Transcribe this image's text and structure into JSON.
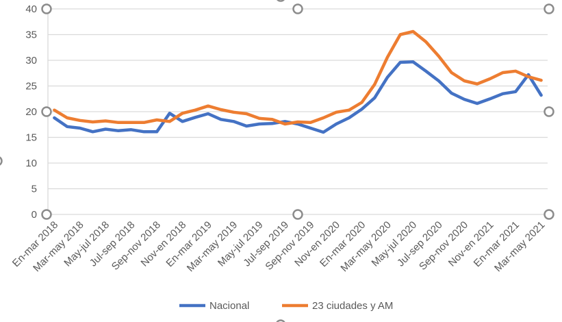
{
  "chart_data": {
    "type": "line",
    "title": "",
    "xlabel": "",
    "ylabel": "",
    "ylim": [
      0,
      40
    ],
    "yticks": [
      "0",
      "5",
      "10",
      "15",
      "20",
      "25",
      "30",
      "35",
      "40"
    ],
    "grid": true,
    "legend_position": "bottom",
    "x_tick_labels": [
      "En-mar 2018",
      "Mar-may 2018",
      "May-jul 2018",
      "Jul-sep 2018",
      "Sep-nov 2018",
      "Nov-en 2018",
      "En-mar 2019",
      "Mar-may 2019",
      "May-jul 2019",
      "Jul-sep 2019",
      "Sep-nov 2019",
      "Nov-en 2020",
      "En-mar 2020",
      "Mar-may 2020",
      "May-jul 2020",
      "Jul-sep 2020",
      "Sep-nov 2020",
      "Nov-en 2021",
      "En-mar 2021",
      "Mar-may 2021"
    ],
    "x_tick_interval": 2,
    "series": [
      {
        "name": "Nacional",
        "color": "#4472C4",
        "values": [
          18.8,
          17.1,
          16.8,
          16.1,
          16.6,
          16.3,
          16.5,
          16.1,
          16.1,
          19.7,
          18.1,
          18.9,
          19.6,
          18.5,
          18.1,
          17.2,
          17.6,
          17.7,
          18.1,
          17.6,
          16.8,
          16.0,
          17.6,
          18.8,
          20.5,
          22.7,
          26.7,
          29.6,
          29.7,
          27.9,
          26.0,
          23.6,
          22.4,
          21.6,
          22.5,
          23.5,
          23.9,
          27.2,
          23.2
        ]
      },
      {
        "name": "23 ciudades y AM",
        "color": "#ED7D31",
        "values": [
          20.3,
          18.8,
          18.3,
          18.0,
          18.2,
          17.9,
          17.9,
          17.9,
          18.4,
          18.1,
          19.7,
          20.3,
          21.1,
          20.4,
          19.9,
          19.6,
          18.7,
          18.5,
          17.6,
          18.0,
          17.9,
          18.8,
          19.9,
          20.3,
          21.8,
          25.3,
          30.6,
          35.0,
          35.6,
          33.6,
          30.8,
          27.6,
          26.0,
          25.4,
          26.4,
          27.6,
          27.9,
          26.8,
          26.1
        ]
      }
    ]
  }
}
